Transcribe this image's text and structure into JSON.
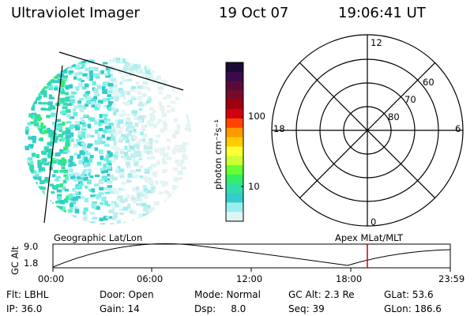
{
  "header": {
    "title": "Ultraviolet Imager",
    "date": "19 Oct 07",
    "time": "19:06:41 UT"
  },
  "colorbar": {
    "unit_label": "photon cm⁻²s⁻¹",
    "ticks": [
      "100",
      "10"
    ],
    "colors": [
      "#1a0a33",
      "#3a0a4a",
      "#5a0a3a",
      "#7a0a2a",
      "#a00010",
      "#d40010",
      "#ff4400",
      "#ff9900",
      "#ffcc00",
      "#ffff33",
      "#ccff33",
      "#66ff33",
      "#33ee66",
      "#33ddaa",
      "#33cccc",
      "#99eeee",
      "#ddf5f5"
    ]
  },
  "polar": {
    "clock_labels": [
      "12",
      "18",
      "6",
      "0"
    ],
    "lat_labels": [
      "60",
      "70",
      "80"
    ]
  },
  "timeline": {
    "left_title": "Geographic Lat/Lon",
    "right_title": "Apex MLat/MLT",
    "ylabel": "GC Alt",
    "ymax": "9.0",
    "ymin": "1.8",
    "ticks": [
      "00:00",
      "06:00",
      "12:00",
      "18:00",
      "23:59"
    ],
    "marker_color": "#cc0000"
  },
  "info": {
    "row1": [
      "Flt: LBHL",
      "Door: Open",
      "Mode: Normal",
      "GC Alt: 2.3 Re",
      "GLat:  53.6"
    ],
    "row2": [
      "IP: 36.0",
      "Gain: 14",
      "Dsp:     8.0",
      "Seq: 39",
      "GLon: 186.6"
    ]
  }
}
